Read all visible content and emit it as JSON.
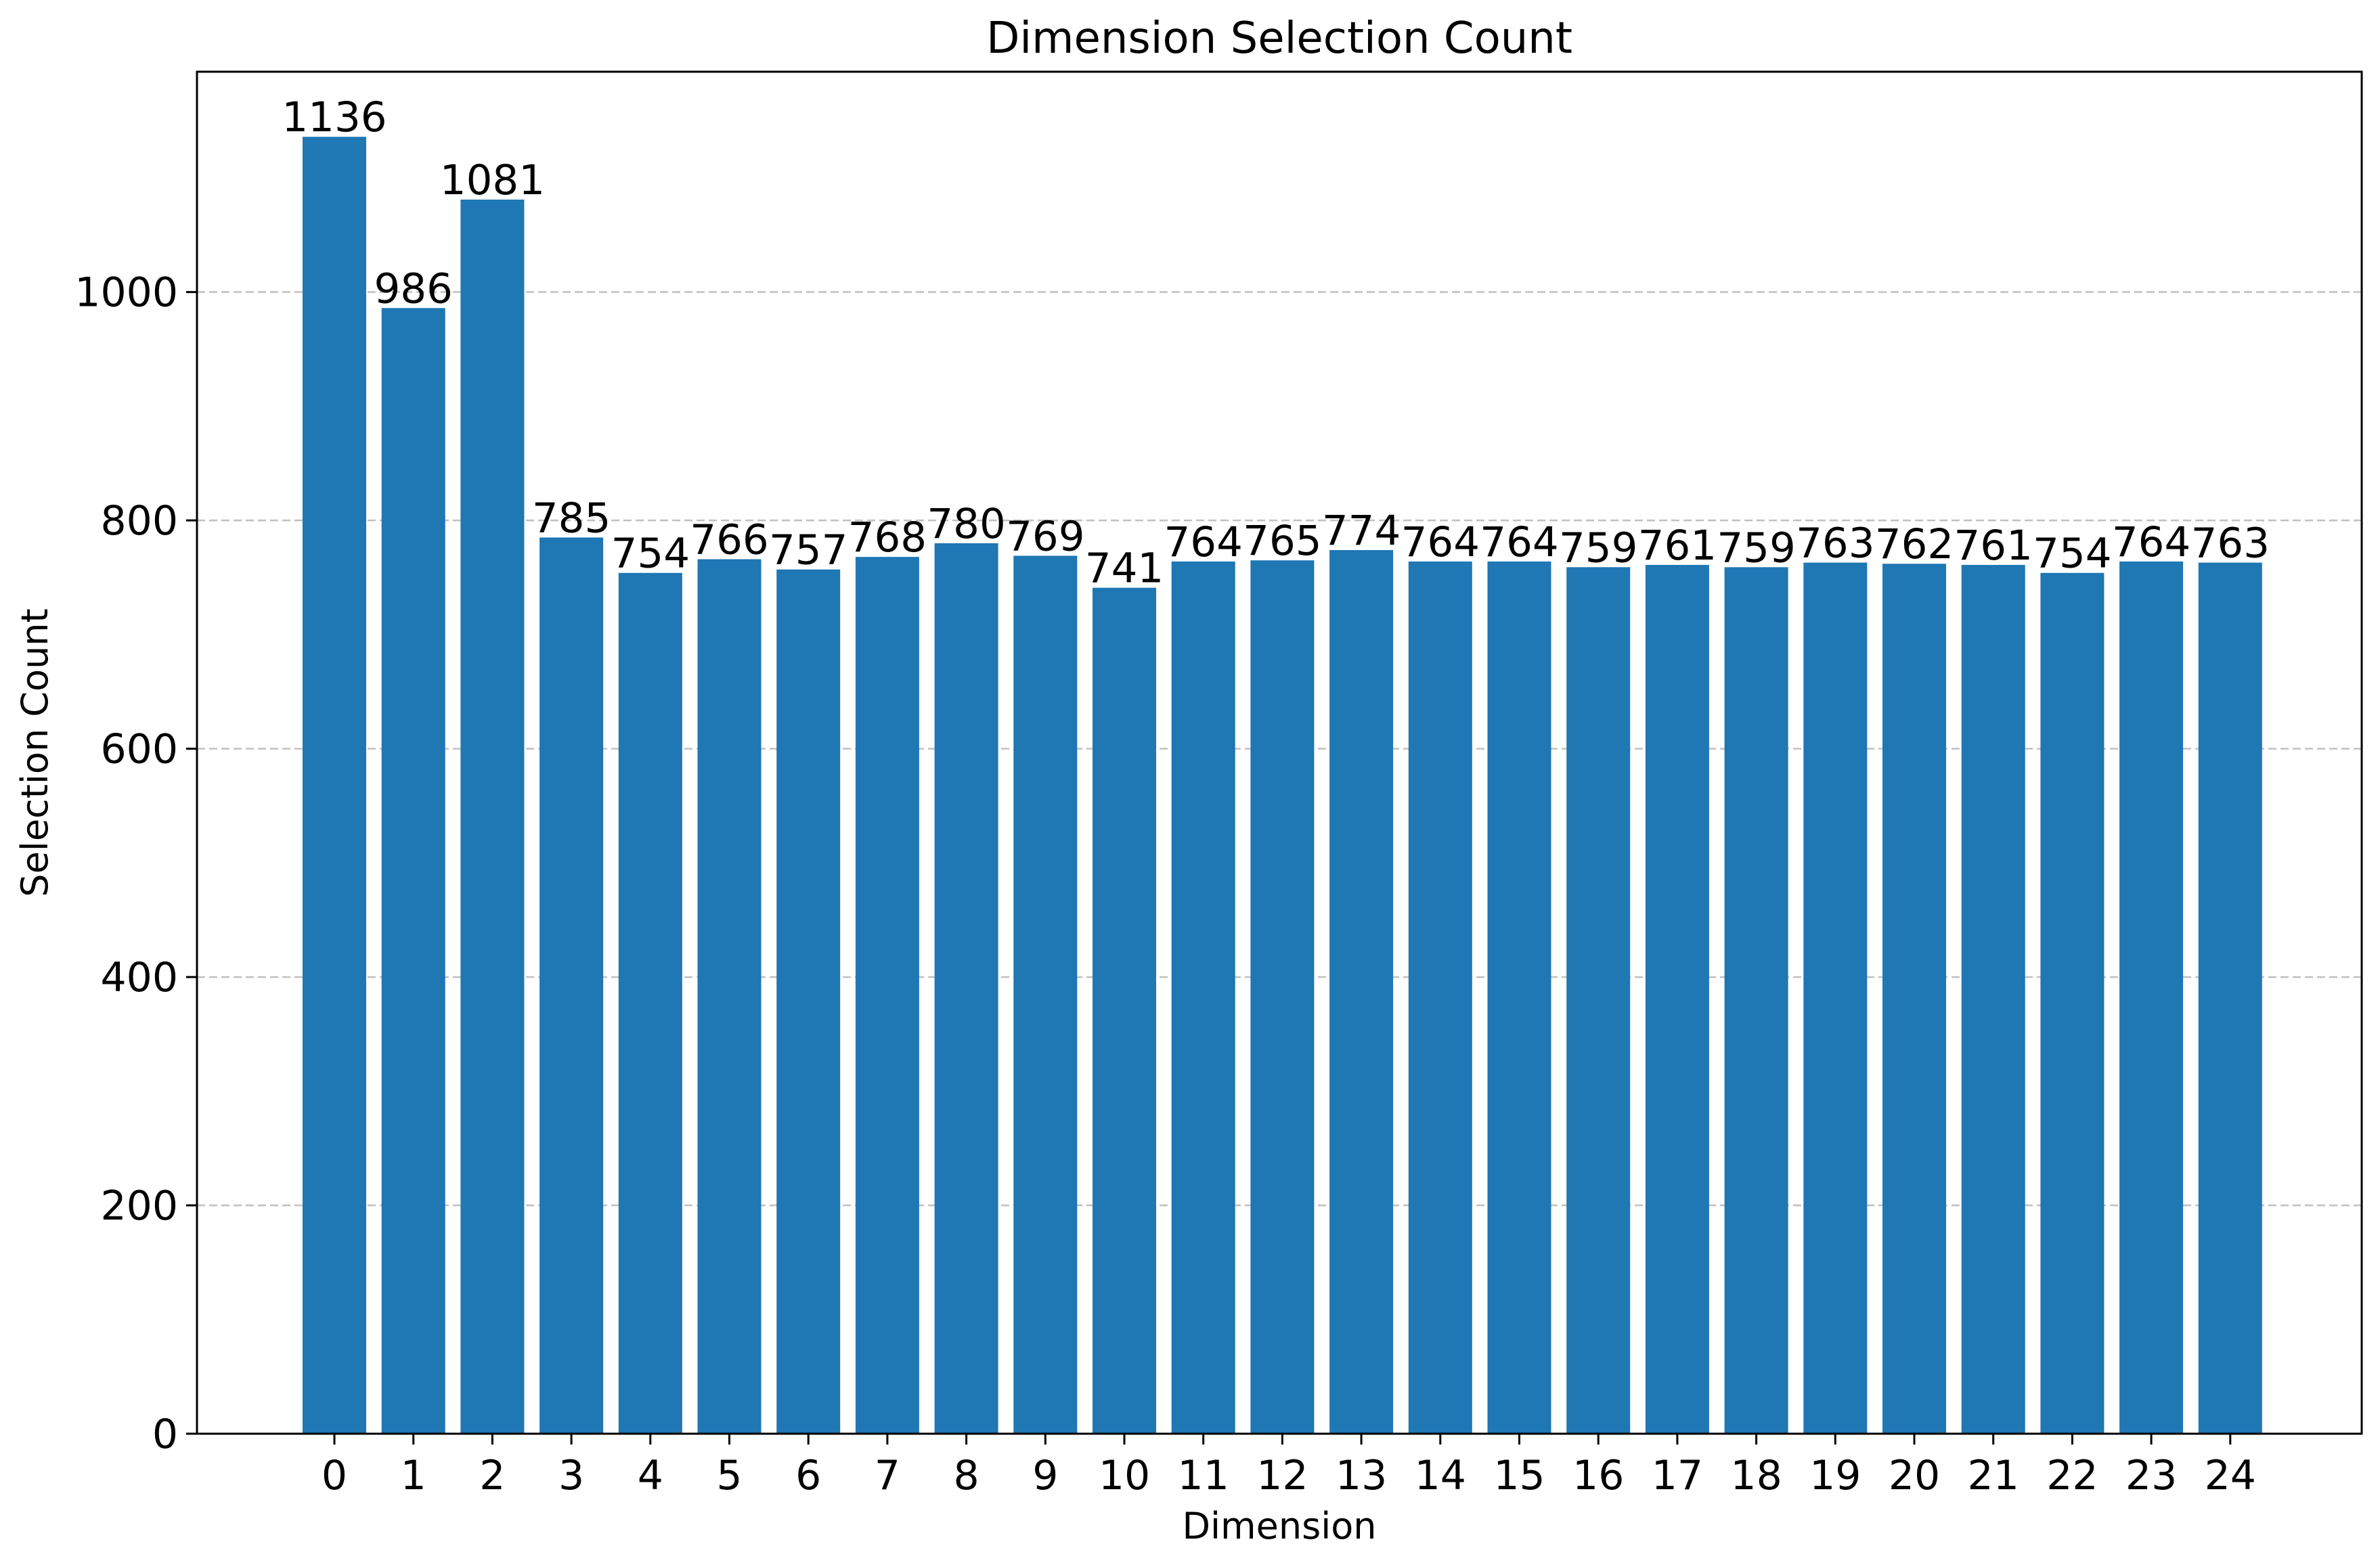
{
  "chart_data": {
    "type": "bar",
    "title": "Dimension Selection Count",
    "xlabel": "Dimension",
    "ylabel": "Selection Count",
    "categories": [
      "0",
      "1",
      "2",
      "3",
      "4",
      "5",
      "6",
      "7",
      "8",
      "9",
      "10",
      "11",
      "12",
      "13",
      "14",
      "15",
      "16",
      "17",
      "18",
      "19",
      "20",
      "21",
      "22",
      "23",
      "24"
    ],
    "values": [
      1136,
      986,
      1081,
      785,
      754,
      766,
      757,
      768,
      780,
      769,
      741,
      764,
      765,
      774,
      764,
      764,
      759,
      761,
      759,
      763,
      762,
      761,
      754,
      764,
      763
    ],
    "value_labels": [
      "1136",
      "986",
      "1081",
      "785",
      "754",
      "766",
      "757",
      "768",
      "780",
      "769",
      "741",
      "764",
      "765",
      "774",
      "764",
      "764",
      "759",
      "761",
      "759",
      "763",
      "762",
      "761",
      "754",
      "764",
      "763"
    ],
    "ylim": [
      0,
      1193
    ],
    "yticks": [
      0,
      200,
      400,
      600,
      800,
      1000
    ],
    "ytick_labels": [
      "0",
      "200",
      "400",
      "600",
      "800",
      "1000"
    ],
    "grid": "y-axis dashed",
    "legend": "none",
    "colors": {
      "bar": "#1f77b4",
      "grid": "#c0c0c0",
      "axis": "#000000"
    }
  }
}
